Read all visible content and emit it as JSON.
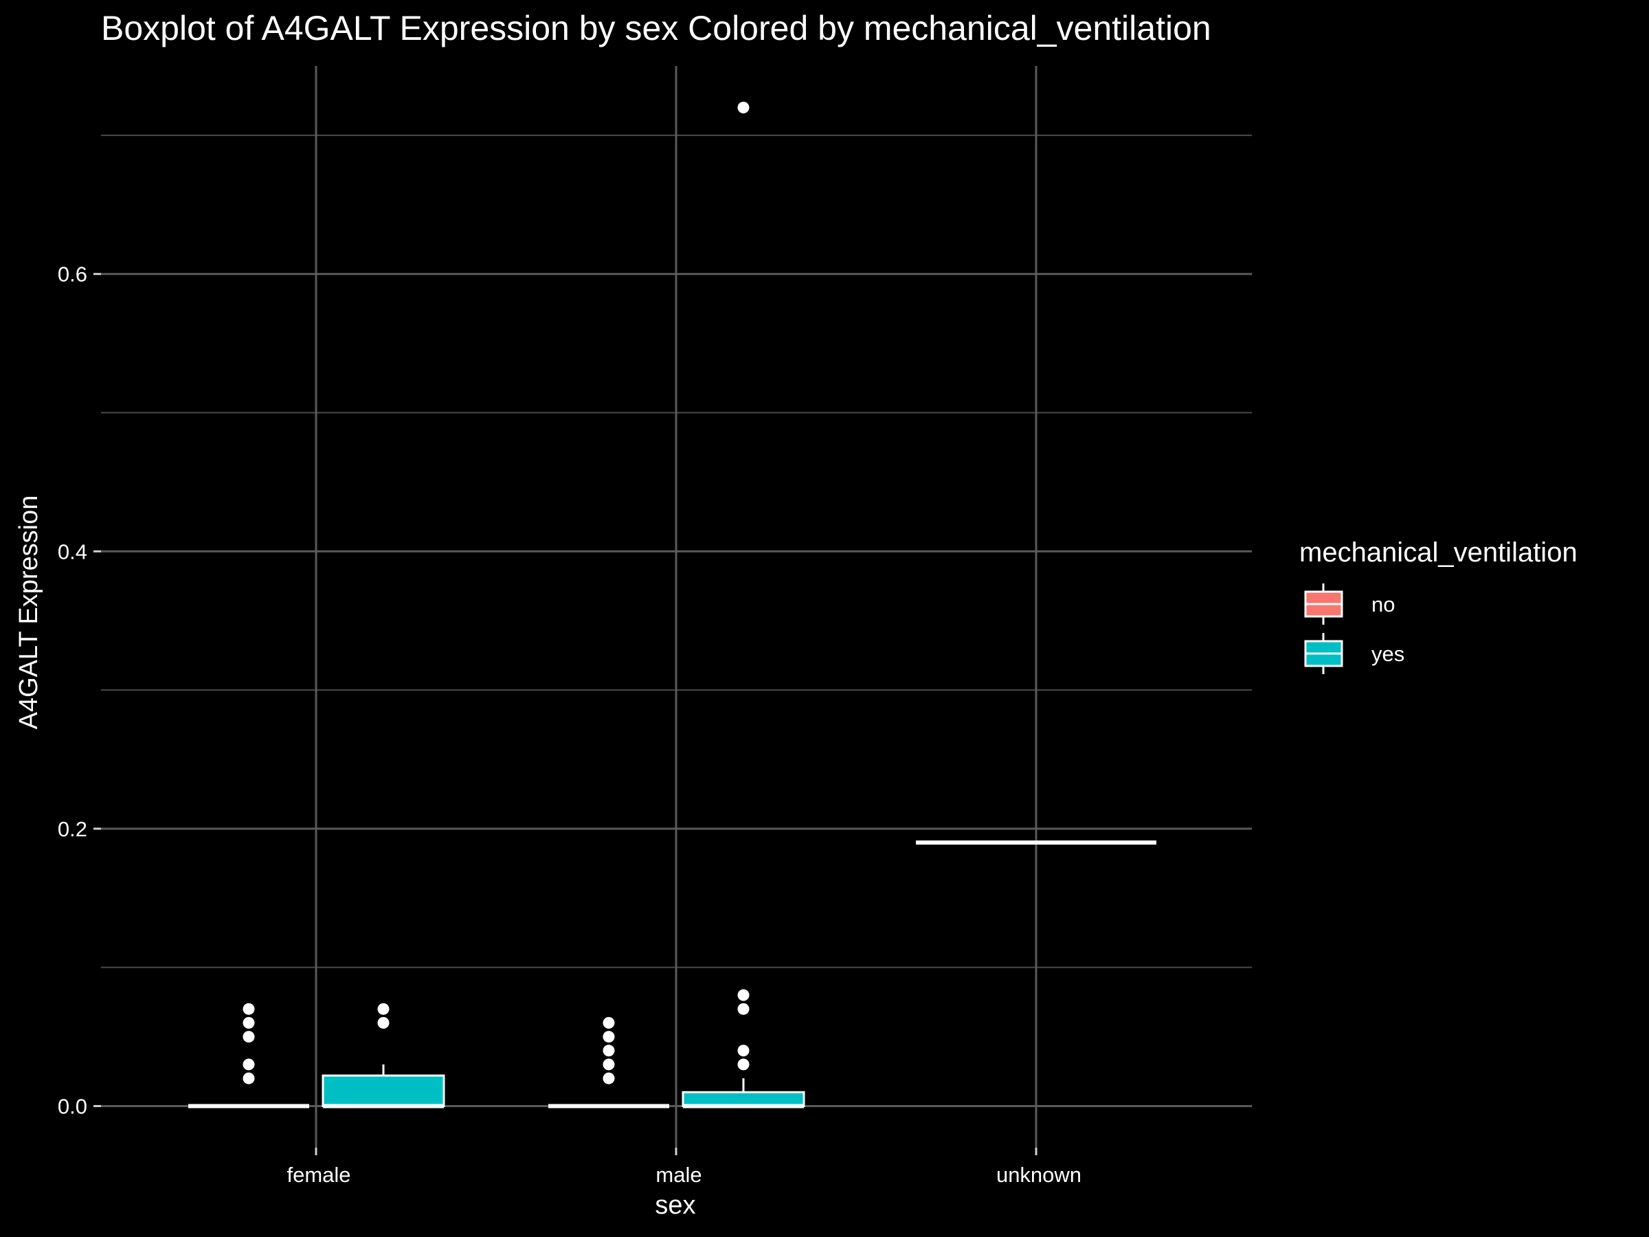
{
  "chart_data": {
    "type": "boxplot",
    "title": "Boxplot of A4GALT Expression by sex Colored by mechanical_ventilation",
    "xlabel": "sex",
    "ylabel": "A4GALT Expression",
    "categories": [
      "female",
      "male",
      "unknown"
    ],
    "ylim": [
      -0.03,
      0.75
    ],
    "yticks": [
      0.0,
      0.2,
      0.4,
      0.6
    ],
    "ytick_labels": [
      "0.0",
      "0.2",
      "0.4",
      "0.6"
    ],
    "grid": true,
    "legend": {
      "title": "mechanical_ventilation",
      "position": "right",
      "entries": [
        {
          "label": "no",
          "color": "#F8766D"
        },
        {
          "label": "yes",
          "color": "#00BFC4"
        }
      ]
    },
    "series": [
      {
        "name": "no",
        "color": "#F8766D",
        "boxes": [
          {
            "category": "female",
            "min": 0.0,
            "q1": 0.0,
            "median": 0.0,
            "q3": 0.0,
            "max": 0.0,
            "outliers": [
              0.02,
              0.03,
              0.05,
              0.06,
              0.07
            ]
          },
          {
            "category": "male",
            "min": 0.0,
            "q1": 0.0,
            "median": 0.0,
            "q3": 0.0,
            "max": 0.0,
            "outliers": [
              0.02,
              0.03,
              0.04,
              0.05,
              0.06
            ]
          }
        ]
      },
      {
        "name": "yes",
        "color": "#00BFC4",
        "boxes": [
          {
            "category": "female",
            "min": 0.0,
            "q1": 0.0,
            "median": 0.0,
            "q3": 0.022,
            "max": 0.03,
            "outliers": [
              0.06,
              0.07
            ]
          },
          {
            "category": "male",
            "min": 0.0,
            "q1": 0.0,
            "median": 0.0,
            "q3": 0.01,
            "max": 0.02,
            "outliers": [
              0.03,
              0.04,
              0.07,
              0.08,
              0.72
            ]
          }
        ]
      },
      {
        "name": "",
        "color": "#808080",
        "boxes": [
          {
            "category": "unknown",
            "min": 0.19,
            "q1": 0.19,
            "median": 0.19,
            "q3": 0.19,
            "max": 0.19,
            "outliers": []
          }
        ]
      }
    ]
  }
}
